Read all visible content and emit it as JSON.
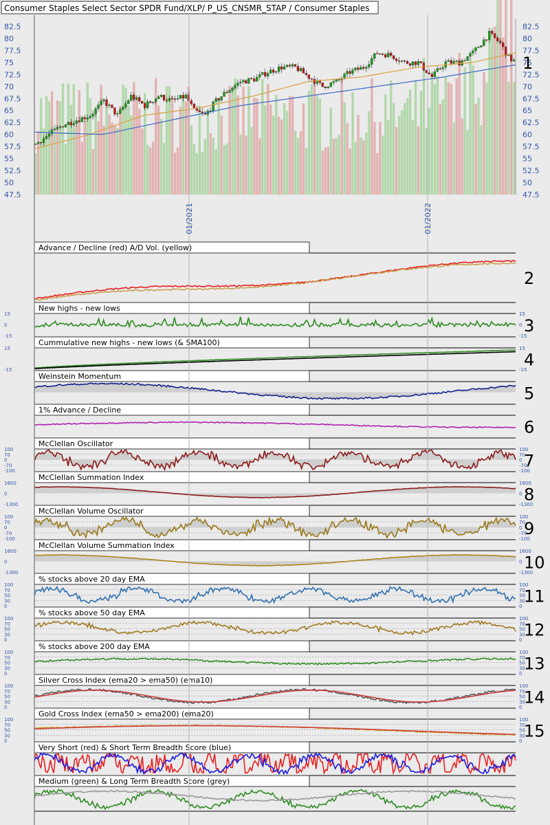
{
  "title": "Consumer Staples Select Sector SPDR Fund/XLP/ P_US_CNSMR_STAP / Consumer Staples",
  "colors": {
    "background": "#ebebeb",
    "up": "#1a9a1a",
    "down": "#c01818",
    "volume_up": "#a8d4a0",
    "volume_down": "#e0a8a8",
    "sma_short": "#d9a040",
    "sma_long": "#3b68c8",
    "axis_text": "#3355aa"
  },
  "chart_data": [
    {
      "type": "candlestick",
      "title": "Consumer Staples Select Sector SPDR Fund/XLP/ P_US_CNSMR_STAP / Consumer Staples",
      "x_ticks": [
        "01/2021",
        "01/2022"
      ],
      "y_ticks": [
        "82.5",
        "80",
        "77.5",
        "75",
        "72.5",
        "70",
        "67.5",
        "65",
        "62.5",
        "60",
        "57.5",
        "55",
        "52.5",
        "50",
        "47.5"
      ],
      "ylim": [
        47.5,
        84
      ],
      "panel_number": "1",
      "close_path": [
        [
          0,
          58
        ],
        [
          10,
          62
        ],
        [
          20,
          64
        ],
        [
          25,
          67
        ],
        [
          30,
          64
        ],
        [
          35,
          68
        ],
        [
          40,
          66
        ],
        [
          45,
          68
        ],
        [
          50,
          67
        ],
        [
          55,
          68
        ],
        [
          58,
          65
        ],
        [
          62,
          64
        ],
        [
          66,
          67
        ],
        [
          70,
          69
        ],
        [
          75,
          71
        ],
        [
          80,
          71.5
        ],
        [
          85,
          73
        ],
        [
          90,
          74
        ],
        [
          95,
          74
        ],
        [
          100,
          72
        ],
        [
          105,
          70
        ],
        [
          110,
          71
        ],
        [
          115,
          73
        ],
        [
          120,
          74
        ],
        [
          125,
          77
        ],
        [
          130,
          76.5
        ],
        [
          135,
          75
        ],
        [
          140,
          75
        ],
        [
          145,
          72
        ],
        [
          150,
          75
        ],
        [
          155,
          75
        ],
        [
          160,
          77
        ],
        [
          163,
          79
        ],
        [
          166,
          81
        ],
        [
          170,
          79
        ],
        [
          173,
          76
        ],
        [
          176,
          75
        ]
      ],
      "sma_short_path": [
        [
          0,
          57
        ],
        [
          20,
          60
        ],
        [
          40,
          64
        ],
        [
          60,
          65.5
        ],
        [
          80,
          68
        ],
        [
          100,
          71
        ],
        [
          120,
          72
        ],
        [
          140,
          74
        ],
        [
          160,
          75
        ],
        [
          176,
          77
        ]
      ],
      "sma_long_path": [
        [
          0,
          60.5
        ],
        [
          25,
          60
        ],
        [
          50,
          63
        ],
        [
          75,
          66
        ],
        [
          100,
          68
        ],
        [
          125,
          70
        ],
        [
          150,
          72
        ],
        [
          165,
          73.5
        ],
        [
          176,
          74.5
        ]
      ]
    },
    {
      "type": "line",
      "panel_number": "2",
      "title": "Advance / Decline (red) A/D Vol. (yellow)",
      "series": [
        {
          "color": "#e82020",
          "shape": "advance_decline"
        },
        {
          "color": "#c8a050",
          "shape": "advance_decline_volume"
        }
      ]
    },
    {
      "type": "line",
      "panel_number": "3",
      "title": "New highs - new lows",
      "y_ticks": [
        "15",
        "0",
        "-15"
      ],
      "series": [
        {
          "color": "#2e8b22",
          "shape": "newhighs"
        }
      ]
    },
    {
      "type": "line",
      "panel_number": "4",
      "title": "Cummulative new highs - new lows (& SMA100)",
      "y_ticks": [
        "15",
        "-15"
      ],
      "series": [
        {
          "color": "#2e8b22",
          "shape": "cumulative"
        },
        {
          "color": "#000000",
          "shape": "cumulative_sma"
        }
      ]
    },
    {
      "type": "area",
      "panel_number": "5",
      "title": "Weinstein Momentum",
      "series": [
        {
          "color": "#10208a",
          "shape": "weinstein"
        }
      ]
    },
    {
      "type": "line",
      "panel_number": "6",
      "title": "1% Advance / Decline",
      "series": [
        {
          "color": "#b020b0",
          "shape": "one_pct"
        }
      ]
    },
    {
      "type": "area",
      "panel_number": "7",
      "title": "McClellan Oscillator",
      "y_ticks": [
        "100",
        "70",
        "0",
        "-70",
        "-100"
      ],
      "series": [
        {
          "color": "#8b1a1a",
          "shape": "oscillator"
        }
      ]
    },
    {
      "type": "area",
      "panel_number": "8",
      "title": "McClellan Summation Index",
      "y_ticks": [
        "1600",
        "0",
        "-1300"
      ],
      "series": [
        {
          "color": "#8b1a1a",
          "shape": "summation"
        }
      ]
    },
    {
      "type": "area",
      "panel_number": "9",
      "title": "McClellan Volume Oscillator",
      "y_ticks": [
        "100",
        "70",
        "0",
        "-70",
        "-100"
      ],
      "series": [
        {
          "color": "#9a7a1a",
          "shape": "oscillator"
        }
      ]
    },
    {
      "type": "area",
      "panel_number": "10",
      "title": "McClellan Volume Summation Index",
      "y_ticks": [
        "1600",
        "0",
        "-1300"
      ],
      "series": [
        {
          "color": "#a8841c",
          "shape": "summation"
        }
      ]
    },
    {
      "type": "line",
      "panel_number": "11",
      "title": "% stocks above 20 day EMA",
      "y_ticks": [
        "100",
        "70",
        "50",
        "30",
        "0"
      ],
      "series": [
        {
          "color": "#3070b0",
          "shape": "pct20"
        }
      ]
    },
    {
      "type": "line",
      "panel_number": "12",
      "title": "% stocks above 50 day EMA",
      "y_ticks": [
        "100",
        "70",
        "50",
        "30",
        "0"
      ],
      "series": [
        {
          "color": "#a07a20",
          "shape": "pct50"
        }
      ]
    },
    {
      "type": "line",
      "panel_number": "13",
      "title": "% stocks above 200 day EMA",
      "y_ticks": [
        "100",
        "70",
        "50",
        "30",
        "0"
      ],
      "series": [
        {
          "color": "#2e8b22",
          "shape": "pct200"
        }
      ]
    },
    {
      "type": "line",
      "panel_number": "14",
      "title": "Silver Cross Index (ema20 > ema50) (ema10)",
      "y_ticks": [
        "100",
        "70",
        "50",
        "30",
        "0"
      ],
      "series": [
        {
          "color": "#555555",
          "shape": "silver"
        },
        {
          "color": "#d04040",
          "shape": "silver_ema"
        }
      ]
    },
    {
      "type": "line",
      "panel_number": "15",
      "title": "Gold Cross Index (ema50 > ema200) (ema20)",
      "y_ticks": [
        "100",
        "70",
        "50",
        "30",
        "0"
      ],
      "series": [
        {
          "color": "#c8a020",
          "shape": "gold"
        },
        {
          "color": "#d04040",
          "shape": "gold_ema"
        }
      ]
    },
    {
      "type": "line",
      "panel_number": "",
      "title": "Very Short (red) & Short Term Breadth Score (blue)",
      "series": [
        {
          "color": "#e82020",
          "shape": "veryshort"
        },
        {
          "color": "#1a1ae0",
          "shape": "short"
        }
      ]
    },
    {
      "type": "line",
      "panel_number": "",
      "title": "Medium (green) & Long Term Breadth Score (grey)",
      "series": [
        {
          "color": "#2e8b22",
          "shape": "medium"
        },
        {
          "color": "#999999",
          "shape": "long"
        }
      ]
    }
  ]
}
